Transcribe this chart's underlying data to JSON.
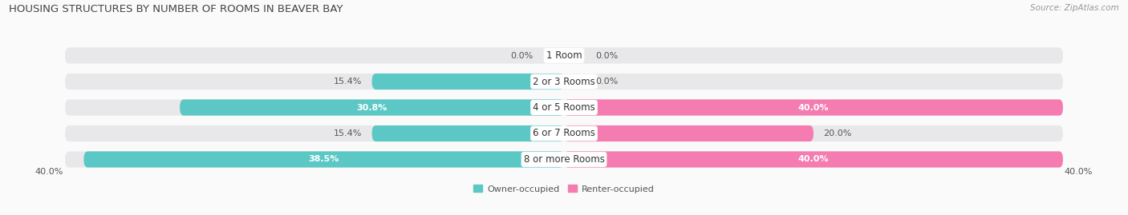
{
  "title": "HOUSING STRUCTURES BY NUMBER OF ROOMS IN BEAVER BAY",
  "source": "Source: ZipAtlas.com",
  "categories": [
    "1 Room",
    "2 or 3 Rooms",
    "4 or 5 Rooms",
    "6 or 7 Rooms",
    "8 or more Rooms"
  ],
  "owner_values": [
    0.0,
    15.4,
    30.8,
    15.4,
    38.5
  ],
  "renter_values": [
    0.0,
    0.0,
    40.0,
    20.0,
    40.0
  ],
  "owner_color": "#5BC8C5",
  "renter_color": "#F47CB0",
  "bar_bg_color": "#E8E8EA",
  "max_val": 40.0,
  "bar_height": 0.62,
  "row_sep_color": "#FFFFFF",
  "axis_label_left": "40.0%",
  "axis_label_right": "40.0%",
  "title_fontsize": 9.5,
  "label_fontsize": 8,
  "tick_fontsize": 8,
  "source_fontsize": 7.5,
  "legend_fontsize": 8,
  "background_color": "#FAFAFA",
  "text_dark": "#555555",
  "text_white": "#FFFFFF"
}
